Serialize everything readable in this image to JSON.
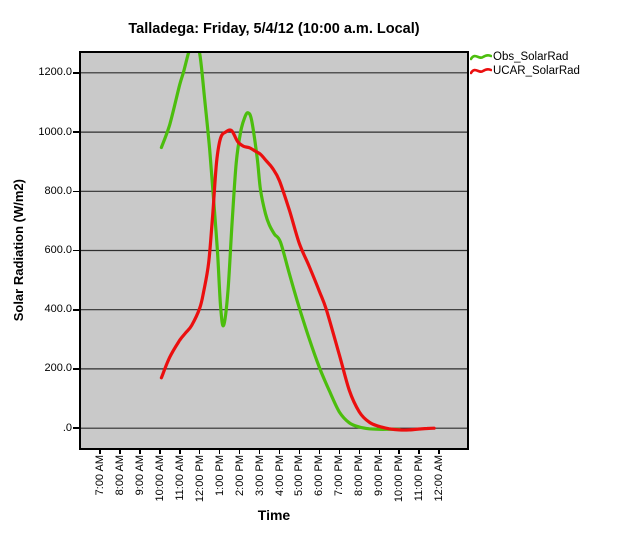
{
  "title": "Talladega: Friday, 5/4/12 (10:00 a.m. Local)",
  "colors": {
    "obs_green": "#4cbe0d",
    "ucar_red": "#eb0f0f",
    "plot_background": "#c9c9c9",
    "gridline": "#2e2e2e",
    "frame": "#000000"
  },
  "legend": {
    "items": [
      {
        "label": "Obs_SolarRad",
        "color": "#4cbe0d"
      },
      {
        "label": "UCAR_SolarRad",
        "color": "#eb0f0f"
      }
    ]
  },
  "y_axis": {
    "label": "Solar Radiation (W/m2)",
    "tick_labels": [
      "1200.0",
      "1000.0",
      "800.0",
      "600.0",
      "400.0",
      "200.0",
      ".0"
    ],
    "tick_values": [
      1200,
      1000,
      800,
      600,
      400,
      200,
      0
    ]
  },
  "x_axis": {
    "label": "Time",
    "tick_labels": [
      "7:00 AM",
      "8:00 AM",
      "9:00 AM",
      "10:00 AM",
      "11:00 AM",
      "12:00 PM",
      "1:00 PM",
      "2:00 PM",
      "3:00 PM",
      "4:00 PM",
      "5:00 PM",
      "6:00 PM",
      "7:00 PM",
      "8:00 PM",
      "9:00 PM",
      "10:00 PM",
      "11:00 PM",
      "12:00 AM"
    ],
    "tick_hours": [
      7,
      8,
      9,
      10,
      11,
      12,
      13,
      14,
      15,
      16,
      17,
      18,
      19,
      20,
      21,
      22,
      23,
      24
    ]
  },
  "chart_data": {
    "type": "line",
    "title": "Talladega: Friday, 5/4/12 (10:00 a.m. Local)",
    "xlabel": "Time",
    "ylabel": "Solar Radiation (W/m2)",
    "x_unit": "hour of day (24h decimal)",
    "xlim": [
      6.05,
      25.4
    ],
    "ylim": [
      -67,
      1267
    ],
    "grid": true,
    "grid_values": [
      0,
      200,
      400,
      600,
      800,
      1000,
      1200
    ],
    "legend_position": "top-right-outside",
    "note": "Obs_SolarRad peak near 11:45 AM exceeds the visible axis (clipped above ~1267 W/m2)",
    "series": [
      {
        "name": "Obs_SolarRad",
        "color": "#4cbe0d",
        "points": [
          [
            10.08,
            948
          ],
          [
            10.5,
            1026
          ],
          [
            11.0,
            1160
          ],
          [
            11.2,
            1205
          ],
          [
            11.5,
            1280
          ],
          [
            11.75,
            1300
          ],
          [
            12.0,
            1265
          ],
          [
            12.25,
            1110
          ],
          [
            12.5,
            940
          ],
          [
            12.75,
            724
          ],
          [
            12.9,
            590
          ],
          [
            13.05,
            410
          ],
          [
            13.2,
            347
          ],
          [
            13.42,
            465
          ],
          [
            13.63,
            700
          ],
          [
            13.83,
            895
          ],
          [
            14.05,
            1000
          ],
          [
            14.25,
            1048
          ],
          [
            14.42,
            1065
          ],
          [
            14.6,
            1040
          ],
          [
            14.88,
            915
          ],
          [
            15.05,
            805
          ],
          [
            15.3,
            724
          ],
          [
            15.5,
            685
          ],
          [
            15.75,
            655
          ],
          [
            16.05,
            628
          ],
          [
            16.5,
            520
          ],
          [
            17.0,
            405
          ],
          [
            17.5,
            300
          ],
          [
            18.0,
            205
          ],
          [
            18.5,
            126
          ],
          [
            19.0,
            55
          ],
          [
            19.5,
            18
          ],
          [
            20.0,
            4
          ],
          [
            20.5,
            -2
          ],
          [
            21.0,
            -4
          ],
          [
            21.5,
            -4
          ],
          [
            22.0,
            -4
          ]
        ]
      },
      {
        "name": "UCAR_SolarRad",
        "color": "#eb0f0f",
        "points": [
          [
            10.08,
            170
          ],
          [
            10.5,
            240
          ],
          [
            11.0,
            297
          ],
          [
            11.3,
            322
          ],
          [
            11.6,
            347
          ],
          [
            12.0,
            405
          ],
          [
            12.2,
            462
          ],
          [
            12.45,
            560
          ],
          [
            12.65,
            720
          ],
          [
            12.85,
            900
          ],
          [
            13.05,
            980
          ],
          [
            13.3,
            1000
          ],
          [
            13.6,
            1005
          ],
          [
            13.9,
            968
          ],
          [
            14.2,
            952
          ],
          [
            14.5,
            947
          ],
          [
            14.8,
            935
          ],
          [
            15.05,
            925
          ],
          [
            15.35,
            902
          ],
          [
            15.65,
            878
          ],
          [
            16.0,
            835
          ],
          [
            16.5,
            735
          ],
          [
            17.0,
            623
          ],
          [
            17.5,
            545
          ],
          [
            18.0,
            462
          ],
          [
            18.35,
            400
          ],
          [
            19.0,
            248
          ],
          [
            19.5,
            128
          ],
          [
            20.0,
            55
          ],
          [
            20.5,
            20
          ],
          [
            21.0,
            6
          ],
          [
            21.5,
            -2
          ],
          [
            22.0,
            -6
          ],
          [
            22.5,
            -6
          ],
          [
            23.0,
            -3
          ],
          [
            23.4,
            -1
          ],
          [
            23.75,
            0
          ]
        ]
      }
    ]
  }
}
